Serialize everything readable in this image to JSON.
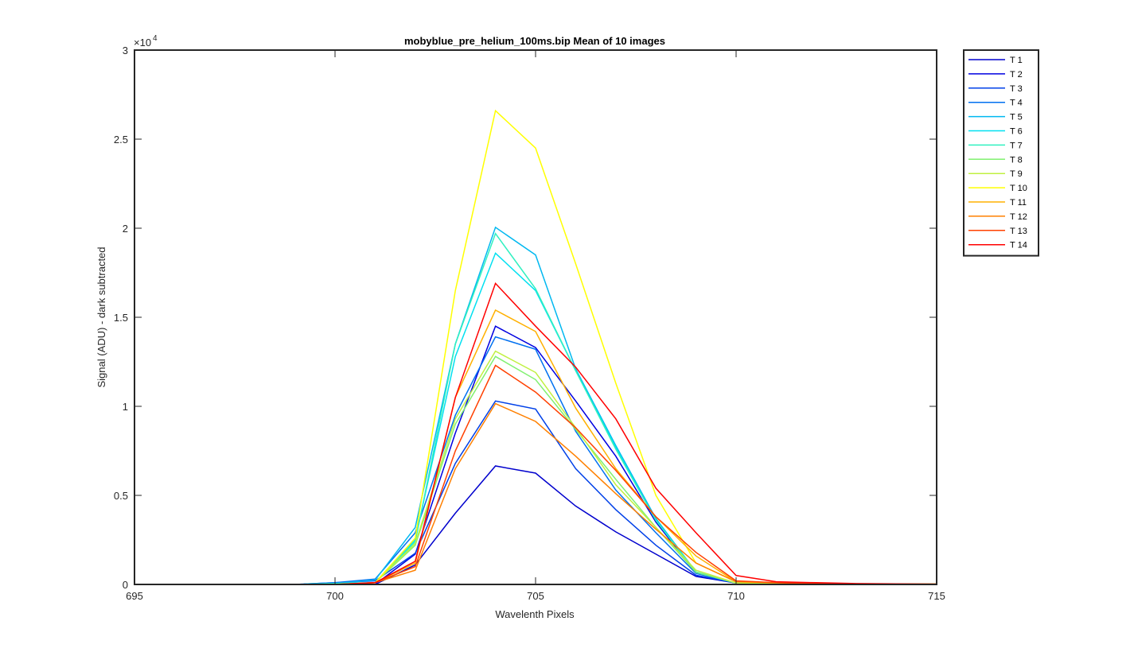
{
  "chart_data": {
    "type": "line",
    "title": "mobyblue_pre_helium_100ms.bip  Mean of 10 images",
    "xlabel": "Wavelenth Pixels",
    "ylabel": "Signal (ADU) - dark subtracted",
    "y_exponent_label": "×10",
    "y_exponent_power": "4",
    "xlim": [
      695,
      715
    ],
    "ylim": [
      0,
      30000
    ],
    "x_ticks": [
      "695",
      "700",
      "705",
      "710",
      "715"
    ],
    "y_ticks": [
      "0",
      "0.5",
      "1",
      "1.5",
      "2",
      "2.5",
      "3"
    ],
    "grid": false,
    "legend_position": "outside-top-right",
    "x": [
      695,
      696,
      697,
      698,
      699,
      700,
      701,
      702,
      703,
      704,
      705,
      706,
      707,
      708,
      709,
      710,
      711,
      712,
      713,
      714,
      715
    ],
    "series": [
      {
        "name": "T 1",
        "color": "#0000cd",
        "values": [
          0,
          0,
          0,
          0,
          0,
          0,
          0,
          1100,
          4000,
          6650,
          6250,
          4400,
          2950,
          1700,
          450,
          80,
          50,
          30,
          20,
          20,
          20
        ]
      },
      {
        "name": "T 2",
        "color": "#0000e0",
        "values": [
          0,
          0,
          0,
          0,
          0,
          0,
          0,
          1700,
          8500,
          14500,
          13300,
          10300,
          7200,
          3500,
          650,
          80,
          50,
          30,
          20,
          20,
          20
        ]
      },
      {
        "name": "T 3",
        "color": "#0040e8",
        "values": [
          0,
          0,
          0,
          0,
          0,
          100,
          200,
          1750,
          6800,
          10300,
          9850,
          6500,
          4200,
          2200,
          520,
          80,
          50,
          30,
          20,
          20,
          20
        ]
      },
      {
        "name": "T 4",
        "color": "#0070f0",
        "values": [
          0,
          0,
          0,
          0,
          0,
          100,
          300,
          2900,
          9500,
          13900,
          13200,
          8600,
          5300,
          2900,
          620,
          80,
          50,
          30,
          20,
          20,
          20
        ]
      },
      {
        "name": "T 5",
        "color": "#00b8f0",
        "values": [
          0,
          0,
          0,
          0,
          0,
          50,
          250,
          3200,
          13500,
          20050,
          18500,
          12100,
          7800,
          3700,
          700,
          80,
          50,
          30,
          20,
          20,
          20
        ]
      },
      {
        "name": "T 6",
        "color": "#00e0f0",
        "values": [
          0,
          0,
          0,
          0,
          0,
          50,
          100,
          2500,
          12800,
          18600,
          16500,
          12000,
          7700,
          3600,
          680,
          80,
          50,
          30,
          20,
          20,
          20
        ]
      },
      {
        "name": "T 7",
        "color": "#30f0c0",
        "values": [
          0,
          0,
          0,
          0,
          0,
          50,
          100,
          2400,
          13500,
          19700,
          16600,
          12000,
          7600,
          3600,
          700,
          80,
          50,
          30,
          20,
          20,
          20
        ]
      },
      {
        "name": "T 8",
        "color": "#80f070",
        "values": [
          0,
          0,
          0,
          0,
          0,
          0,
          100,
          2200,
          9000,
          12800,
          11500,
          8700,
          5900,
          3200,
          680,
          80,
          50,
          30,
          20,
          20,
          20
        ]
      },
      {
        "name": "T 9",
        "color": "#c0f040",
        "values": [
          0,
          0,
          0,
          0,
          0,
          0,
          100,
          2300,
          9300,
          13100,
          11900,
          8800,
          5600,
          3200,
          800,
          80,
          50,
          30,
          20,
          20,
          20
        ]
      },
      {
        "name": "T 10",
        "color": "#ffff00",
        "values": [
          0,
          0,
          0,
          0,
          0,
          0,
          100,
          2600,
          16500,
          26600,
          24500,
          18000,
          11300,
          5000,
          1200,
          150,
          100,
          50,
          30,
          20,
          20
        ]
      },
      {
        "name": "T 11",
        "color": "#ffb000",
        "values": [
          0,
          0,
          0,
          0,
          0,
          0,
          100,
          1200,
          10500,
          15400,
          14200,
          9900,
          6500,
          3800,
          1600,
          150,
          100,
          50,
          30,
          20,
          20
        ]
      },
      {
        "name": "T 12",
        "color": "#ff8000",
        "values": [
          0,
          0,
          0,
          0,
          0,
          0,
          100,
          800,
          6500,
          10150,
          9150,
          7200,
          5100,
          3100,
          1200,
          150,
          100,
          50,
          30,
          20,
          20
        ]
      },
      {
        "name": "T 13",
        "color": "#ff4000",
        "values": [
          0,
          0,
          0,
          0,
          0,
          0,
          100,
          1000,
          7500,
          12300,
          10800,
          8800,
          6400,
          3800,
          1800,
          200,
          100,
          50,
          30,
          20,
          20
        ]
      },
      {
        "name": "T 14",
        "color": "#ff0000",
        "values": [
          0,
          0,
          0,
          0,
          0,
          0,
          100,
          1300,
          10500,
          16900,
          14500,
          12200,
          9300,
          5400,
          2900,
          500,
          150,
          100,
          50,
          30,
          20
        ]
      }
    ]
  }
}
